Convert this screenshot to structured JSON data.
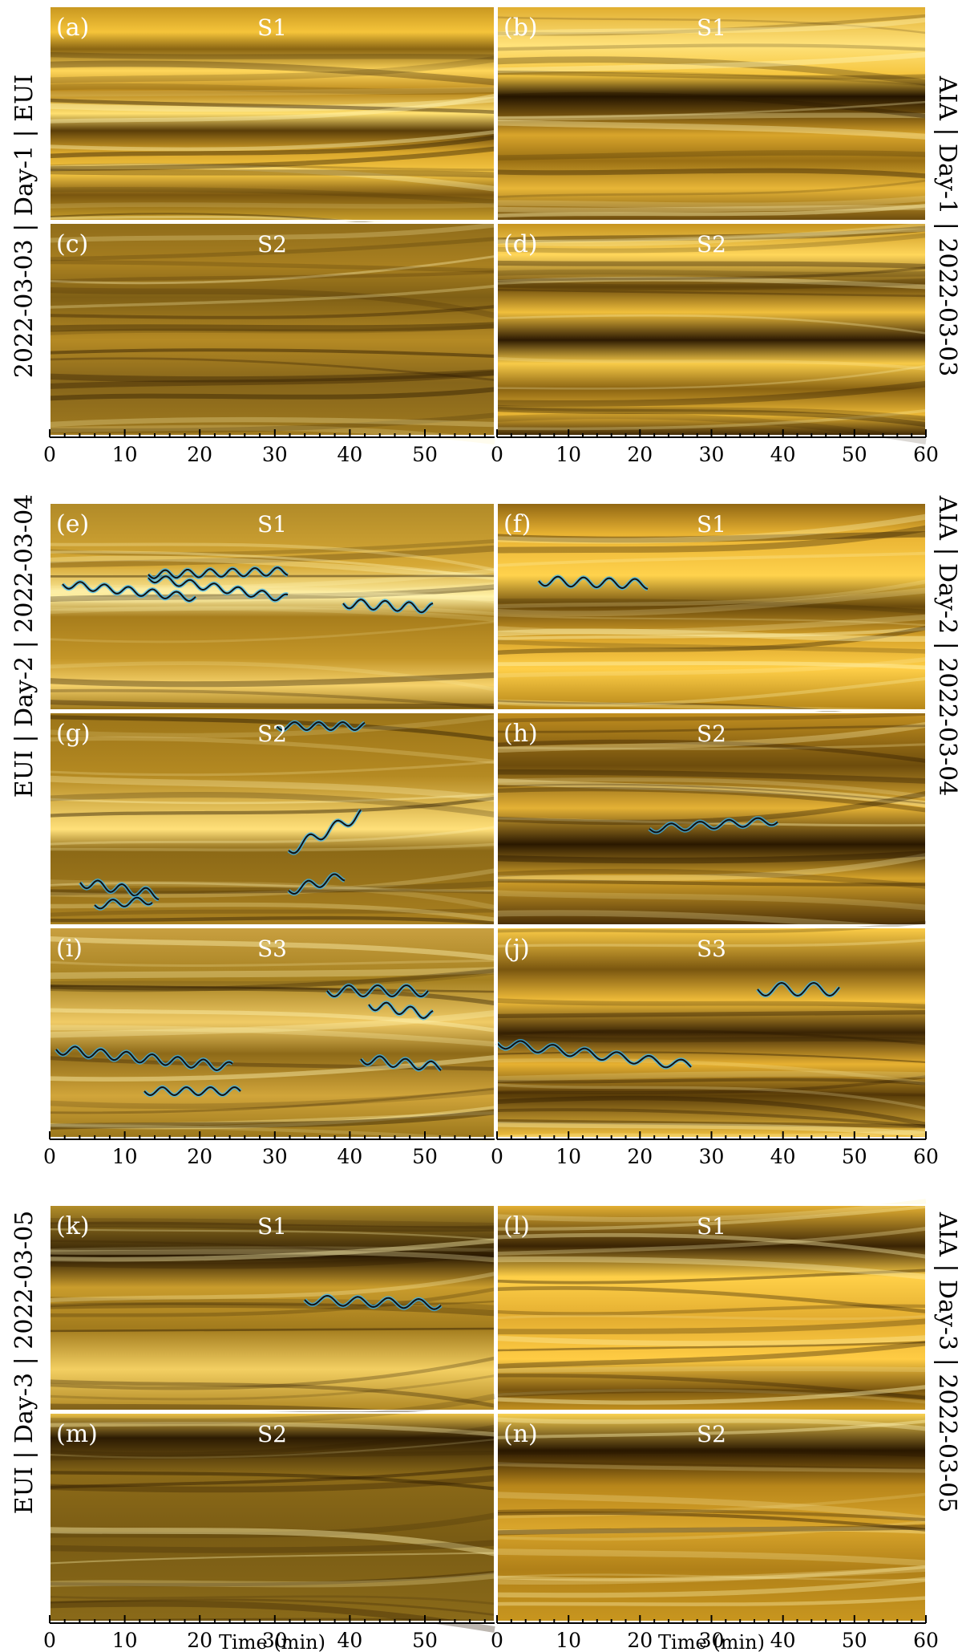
{
  "figure": {
    "colors": {
      "dark": "#2a1800",
      "mid": "#b58a1c",
      "bright": "#ffd24a",
      "highlight": "#fff3b0",
      "fit_line": "#111111",
      "data_points": "#2fb6ff",
      "frame": "#000000"
    },
    "side_labels": {
      "left": [
        "2022-03-03  |  Day-1  |  EUI",
        "EUI  |  Day-2  |  2022-03-04",
        "EUI  |  Day-3  |  2022-03-05"
      ],
      "right": [
        "AIA  |  Day-1  |  2022-03-03",
        "AIA  |  Day-2  |  2022-03-04",
        "AIA  |  Day-3  |  2022-03-05"
      ]
    },
    "x_axis": {
      "left_ticks": [
        "0",
        "10",
        "20",
        "30",
        "40",
        "50"
      ],
      "right_ticks": [
        "0",
        "10",
        "20",
        "30",
        "40",
        "50",
        "60"
      ],
      "xlabel": "Time (min)"
    },
    "panels": [
      {
        "letter": "(a)",
        "slit": "S1",
        "instrument": "EUI"
      },
      {
        "letter": "(b)",
        "slit": "S1",
        "instrument": "AIA"
      },
      {
        "letter": "(c)",
        "slit": "S2",
        "instrument": "EUI"
      },
      {
        "letter": "(d)",
        "slit": "S2",
        "instrument": "AIA"
      },
      {
        "letter": "(e)",
        "slit": "S1",
        "instrument": "EUI"
      },
      {
        "letter": "(f)",
        "slit": "S1",
        "instrument": "AIA"
      },
      {
        "letter": "(g)",
        "slit": "S2",
        "instrument": "EUI"
      },
      {
        "letter": "(h)",
        "slit": "S2",
        "instrument": "AIA"
      },
      {
        "letter": "(i)",
        "slit": "S3",
        "instrument": "EUI"
      },
      {
        "letter": "(j)",
        "slit": "S3",
        "instrument": "AIA"
      },
      {
        "letter": "(k)",
        "slit": "S1",
        "instrument": "EUI"
      },
      {
        "letter": "(l)",
        "slit": "S1",
        "instrument": "AIA"
      },
      {
        "letter": "(m)",
        "slit": "S2",
        "instrument": "EUI"
      },
      {
        "letter": "(n)",
        "slit": "S2",
        "instrument": "AIA"
      }
    ]
  }
}
